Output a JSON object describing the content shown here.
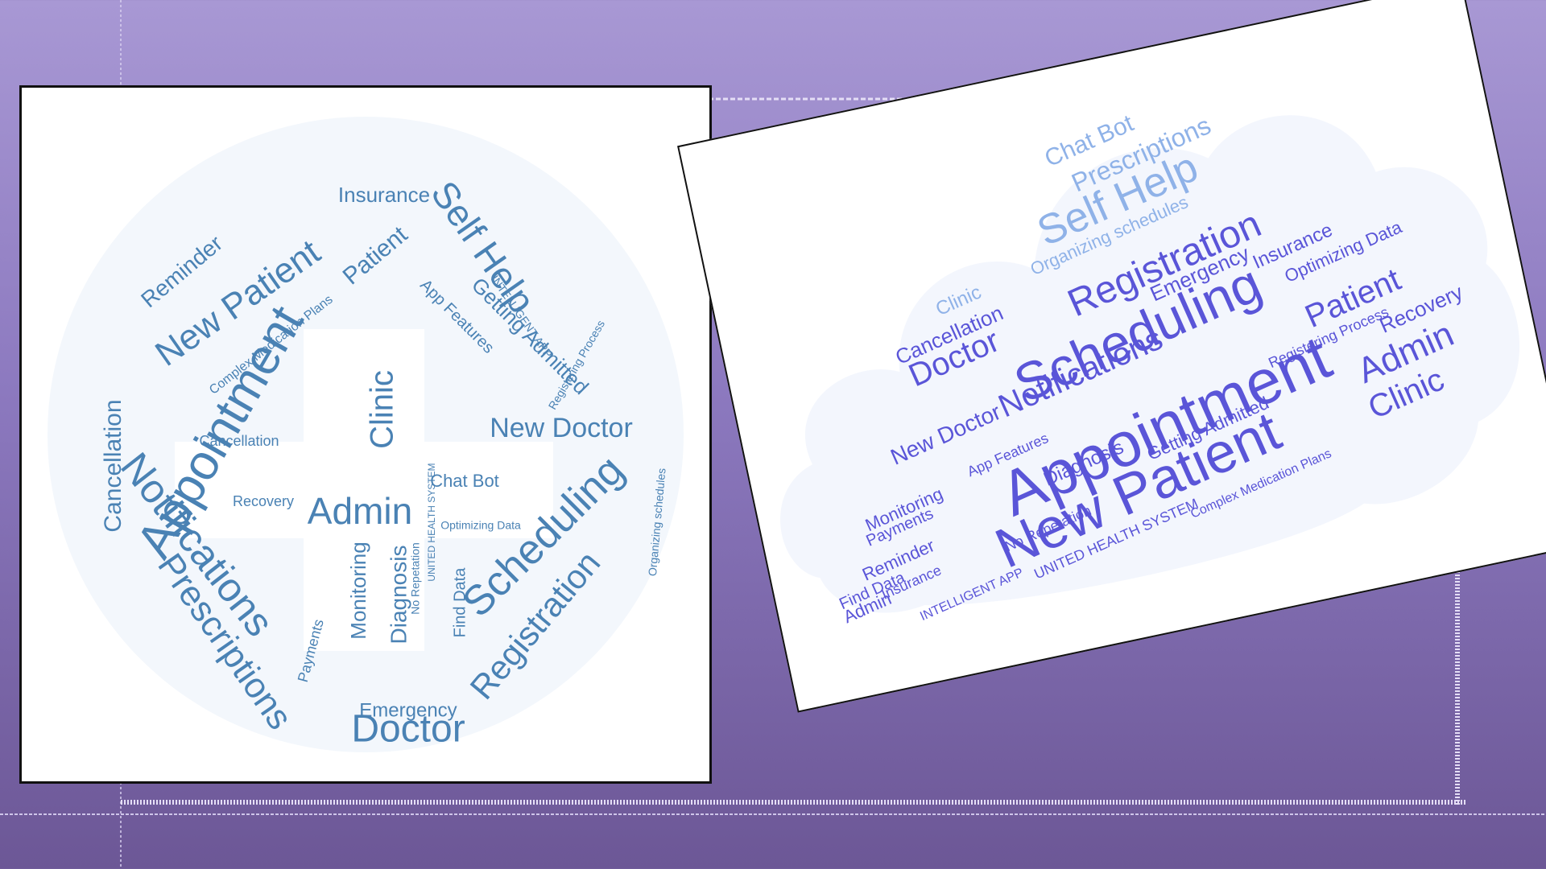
{
  "left_cloud": {
    "words": [
      {
        "t": "Appointment"
      },
      {
        "t": "New Patient"
      },
      {
        "t": "Notifications"
      },
      {
        "t": "Prescriptions"
      },
      {
        "t": "Scheduling"
      },
      {
        "t": "Registration"
      },
      {
        "t": "Self Help"
      },
      {
        "t": "Doctor"
      },
      {
        "t": "Admin"
      },
      {
        "t": "Clinic"
      },
      {
        "t": "New Doctor"
      },
      {
        "t": "Cancellation"
      },
      {
        "t": "Reminder"
      },
      {
        "t": "Insurance"
      },
      {
        "t": "Emergency"
      },
      {
        "t": "Chat Bot"
      },
      {
        "t": "Monitoring"
      },
      {
        "t": "Diagnosis"
      },
      {
        "t": "Recovery"
      },
      {
        "t": "Getting Admitted"
      },
      {
        "t": "Patient"
      },
      {
        "t": "Find Data"
      },
      {
        "t": "Payments"
      },
      {
        "t": "App Features"
      },
      {
        "t": "Optimizing Data"
      },
      {
        "t": "Organizing schedules"
      },
      {
        "t": "INTELLIGENT APP"
      },
      {
        "t": "UNITED HEALTH SYSTEM"
      },
      {
        "t": "No Repetation"
      },
      {
        "t": "Complex Medication Plans"
      },
      {
        "t": "Registering Process"
      },
      {
        "t": "Cancellation"
      },
      {
        "t": "Reminder"
      },
      {
        "t": "Clinic"
      }
    ]
  },
  "right_cloud": {
    "words": [
      {
        "t": "Appointment"
      },
      {
        "t": "Scheduling"
      },
      {
        "t": "New Patient"
      },
      {
        "t": "Registration"
      },
      {
        "t": "Self Help"
      },
      {
        "t": "Notifications"
      },
      {
        "t": "Doctor"
      },
      {
        "t": "Admin"
      },
      {
        "t": "Patient"
      },
      {
        "t": "Clinic"
      },
      {
        "t": "Prescriptions"
      },
      {
        "t": "Chat Bot"
      },
      {
        "t": "New Doctor"
      },
      {
        "t": "Cancellation"
      },
      {
        "t": "Emergency"
      },
      {
        "t": "Insurance"
      },
      {
        "t": "Recovery"
      },
      {
        "t": "Reminder"
      },
      {
        "t": "Diagnosis"
      },
      {
        "t": "Getting Admitted"
      },
      {
        "t": "Monitoring"
      },
      {
        "t": "Find Data"
      },
      {
        "t": "Payments"
      },
      {
        "t": "App Features"
      },
      {
        "t": "Optimizing Data"
      },
      {
        "t": "Organizing schedules"
      },
      {
        "t": "UNITED HEALTH SYSTEM"
      },
      {
        "t": "INTELLIGENT APP"
      },
      {
        "t": "No Repetation"
      },
      {
        "t": "Complex Medication Plans"
      },
      {
        "t": "Registering Process"
      },
      {
        "t": "Insurance"
      },
      {
        "t": "Admin"
      },
      {
        "t": "Clinic"
      }
    ]
  },
  "colors": {
    "left_word": "#4a82b4",
    "right_word_dark": "#5a55d8",
    "right_word_light": "#8fb2e8"
  }
}
